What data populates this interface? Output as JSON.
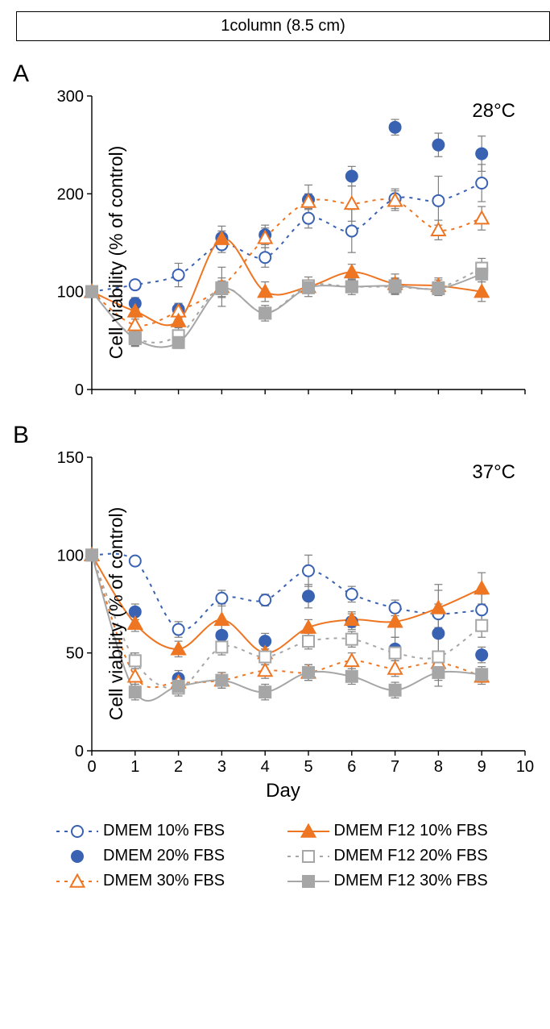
{
  "header": {
    "text": "1column (8.5 cm)"
  },
  "axis": {
    "x_title": "Day",
    "y_title": "Cell viability (% of control)"
  },
  "colors": {
    "blue": "#3a62b3",
    "orange": "#ee7623",
    "gray": "#a6a6a6",
    "errbar": "#7f7f7f",
    "axis": "#000000",
    "bg": "#ffffff"
  },
  "markers": {
    "size": 7,
    "stroke": 2
  },
  "line_width": 2,
  "error_cap": 5,
  "panels": [
    {
      "id": "A",
      "label": "A",
      "annot": "28°C",
      "x": {
        "min": 0,
        "max": 10,
        "ticks": [
          0,
          1,
          2,
          3,
          4,
          5,
          6,
          7,
          8,
          9,
          10
        ]
      },
      "y": {
        "min": 0,
        "max": 300,
        "ticks": [
          0,
          100,
          200,
          300
        ]
      },
      "series": [
        {
          "key": "dmem10",
          "x": [
            0,
            1,
            2,
            3,
            4,
            5,
            6,
            7,
            8,
            9
          ],
          "y": [
            100,
            107,
            117,
            148,
            135,
            175,
            162,
            195,
            193,
            211
          ],
          "err": [
            4,
            5,
            12,
            8,
            10,
            10,
            22,
            10,
            25,
            19
          ]
        },
        {
          "key": "dmem20",
          "x": [
            0,
            1,
            2,
            3,
            4,
            5,
            6,
            7,
            8,
            9
          ],
          "y": [
            100,
            88,
            82,
            155,
            158,
            194,
            218,
            268,
            250,
            241
          ],
          "err": [
            4,
            6,
            6,
            12,
            10,
            15,
            10,
            8,
            12,
            18
          ]
        },
        {
          "key": "dmem30",
          "x": [
            0,
            1,
            2,
            3,
            4,
            5,
            6,
            7,
            8,
            9
          ],
          "y": [
            100,
            66,
            80,
            105,
            155,
            192,
            190,
            193,
            163,
            175
          ],
          "err": [
            4,
            8,
            8,
            20,
            10,
            8,
            18,
            10,
            10,
            12
          ]
        },
        {
          "key": "dmemf12_10",
          "x": [
            0,
            1,
            2,
            3,
            4,
            5,
            6,
            7,
            8,
            9
          ],
          "y": [
            100,
            80,
            70,
            154,
            100,
            105,
            120,
            108,
            106,
            100
          ],
          "err": [
            4,
            8,
            6,
            8,
            10,
            10,
            8,
            10,
            8,
            10
          ]
        },
        {
          "key": "dmemf12_20",
          "x": [
            0,
            1,
            2,
            3,
            4,
            5,
            6,
            7,
            8,
            9
          ],
          "y": [
            100,
            53,
            55,
            104,
            78,
            106,
            105,
            105,
            104,
            124
          ],
          "err": [
            4,
            8,
            8,
            10,
            8,
            6,
            8,
            8,
            8,
            10
          ]
        },
        {
          "key": "dmemf12_30",
          "x": [
            0,
            1,
            2,
            3,
            4,
            5,
            6,
            7,
            8,
            9
          ],
          "y": [
            100,
            52,
            48,
            103,
            78,
            104,
            105,
            106,
            103,
            118
          ],
          "err": [
            4,
            8,
            6,
            8,
            6,
            6,
            6,
            8,
            6,
            8
          ]
        }
      ]
    },
    {
      "id": "B",
      "label": "B",
      "annot": "37°C",
      "x": {
        "min": 0,
        "max": 10,
        "ticks": [
          0,
          1,
          2,
          3,
          4,
          5,
          6,
          7,
          8,
          9,
          10
        ]
      },
      "y": {
        "min": 0,
        "max": 150,
        "ticks": [
          0,
          50,
          100,
          150
        ]
      },
      "series": [
        {
          "key": "dmem10",
          "x": [
            0,
            1,
            2,
            3,
            4,
            5,
            6,
            7,
            8,
            9
          ],
          "y": [
            100,
            97,
            62,
            78,
            77,
            92,
            80,
            73,
            70,
            72
          ],
          "err": [
            2,
            2,
            4,
            4,
            3,
            8,
            4,
            4,
            12,
            8
          ]
        },
        {
          "key": "dmem20",
          "x": [
            0,
            1,
            2,
            3,
            4,
            5,
            6,
            7,
            8,
            9
          ],
          "y": [
            100,
            71,
            37,
            59,
            56,
            79,
            66,
            52,
            60,
            49
          ],
          "err": [
            2,
            4,
            4,
            6,
            4,
            6,
            4,
            6,
            15,
            4
          ]
        },
        {
          "key": "dmem30",
          "x": [
            0,
            1,
            2,
            3,
            4,
            5,
            6,
            7,
            8,
            9
          ],
          "y": [
            100,
            38,
            35,
            36,
            41,
            40,
            46,
            42,
            45,
            38
          ],
          "err": [
            2,
            4,
            4,
            4,
            4,
            4,
            4,
            4,
            6,
            4
          ]
        },
        {
          "key": "dmemf12_10",
          "x": [
            0,
            1,
            2,
            3,
            4,
            5,
            6,
            7,
            8,
            9
          ],
          "y": [
            100,
            65,
            52,
            67,
            50,
            63,
            67,
            66,
            73,
            83
          ],
          "err": [
            2,
            4,
            4,
            8,
            6,
            4,
            4,
            8,
            12,
            8
          ]
        },
        {
          "key": "dmemf12_20",
          "x": [
            0,
            1,
            2,
            3,
            4,
            5,
            6,
            7,
            8,
            9
          ],
          "y": [
            100,
            46,
            32,
            53,
            48,
            56,
            57,
            50,
            48,
            64
          ],
          "err": [
            2,
            4,
            4,
            4,
            4,
            4,
            4,
            4,
            15,
            6
          ]
        },
        {
          "key": "dmemf12_30",
          "x": [
            0,
            1,
            2,
            3,
            4,
            5,
            6,
            7,
            8,
            9
          ],
          "y": [
            100,
            30,
            33,
            36,
            30,
            40,
            38,
            31,
            40,
            39
          ],
          "err": [
            2,
            4,
            4,
            4,
            4,
            4,
            4,
            4,
            4,
            4
          ]
        }
      ]
    }
  ],
  "series_style": {
    "dmem10": {
      "label": "DMEM 10% FBS",
      "color": "blue",
      "marker": "circle",
      "filled": false,
      "line": "dotted"
    },
    "dmem20": {
      "label": "DMEM 20% FBS",
      "color": "blue",
      "marker": "circle",
      "filled": true,
      "line": "none"
    },
    "dmem30": {
      "label": "DMEM 30% FBS",
      "color": "orange",
      "marker": "triangle",
      "filled": false,
      "line": "dotted"
    },
    "dmemf12_10": {
      "label": "DMEM F12 10% FBS",
      "color": "orange",
      "marker": "triangle",
      "filled": true,
      "line": "solid"
    },
    "dmemf12_20": {
      "label": "DMEM F12 20% FBS",
      "color": "gray",
      "marker": "square",
      "filled": false,
      "line": "dotted"
    },
    "dmemf12_30": {
      "label": "DMEM F12 30% FBS",
      "color": "gray",
      "marker": "square",
      "filled": true,
      "line": "solid"
    }
  },
  "legend_order": [
    "dmem10",
    "dmemf12_10",
    "dmem20",
    "dmemf12_20",
    "dmem30",
    "dmemf12_30"
  ]
}
